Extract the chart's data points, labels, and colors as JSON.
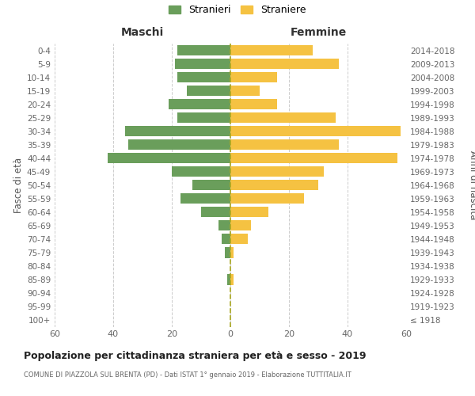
{
  "age_groups": [
    "100+",
    "95-99",
    "90-94",
    "85-89",
    "80-84",
    "75-79",
    "70-74",
    "65-69",
    "60-64",
    "55-59",
    "50-54",
    "45-49",
    "40-44",
    "35-39",
    "30-34",
    "25-29",
    "20-24",
    "15-19",
    "10-14",
    "5-9",
    "0-4"
  ],
  "birth_years": [
    "≤ 1918",
    "1919-1923",
    "1924-1928",
    "1929-1933",
    "1934-1938",
    "1939-1943",
    "1944-1948",
    "1949-1953",
    "1954-1958",
    "1959-1963",
    "1964-1968",
    "1969-1973",
    "1974-1978",
    "1979-1983",
    "1984-1988",
    "1989-1993",
    "1994-1998",
    "1999-2003",
    "2004-2008",
    "2009-2013",
    "2014-2018"
  ],
  "males": [
    0,
    0,
    0,
    1,
    0,
    2,
    3,
    4,
    10,
    17,
    13,
    20,
    42,
    35,
    36,
    18,
    21,
    15,
    18,
    19,
    18
  ],
  "females": [
    0,
    0,
    0,
    1,
    0,
    1,
    6,
    7,
    13,
    25,
    30,
    32,
    57,
    37,
    58,
    36,
    16,
    10,
    16,
    37,
    28
  ],
  "male_color": "#6a9e5b",
  "female_color": "#f5c242",
  "background_color": "#ffffff",
  "grid_color": "#cccccc",
  "title": "Popolazione per cittadinanza straniera per età e sesso - 2019",
  "subtitle": "COMUNE DI PIAZZOLA SUL BRENTA (PD) - Dati ISTAT 1° gennaio 2019 - Elaborazione TUTTITALIA.IT",
  "label_maschi": "Maschi",
  "label_femmine": "Femmine",
  "ylabel_left": "Fasce di età",
  "ylabel_right": "Anni di nascita",
  "legend_male": "Stranieri",
  "legend_female": "Straniere",
  "xlim": 60
}
